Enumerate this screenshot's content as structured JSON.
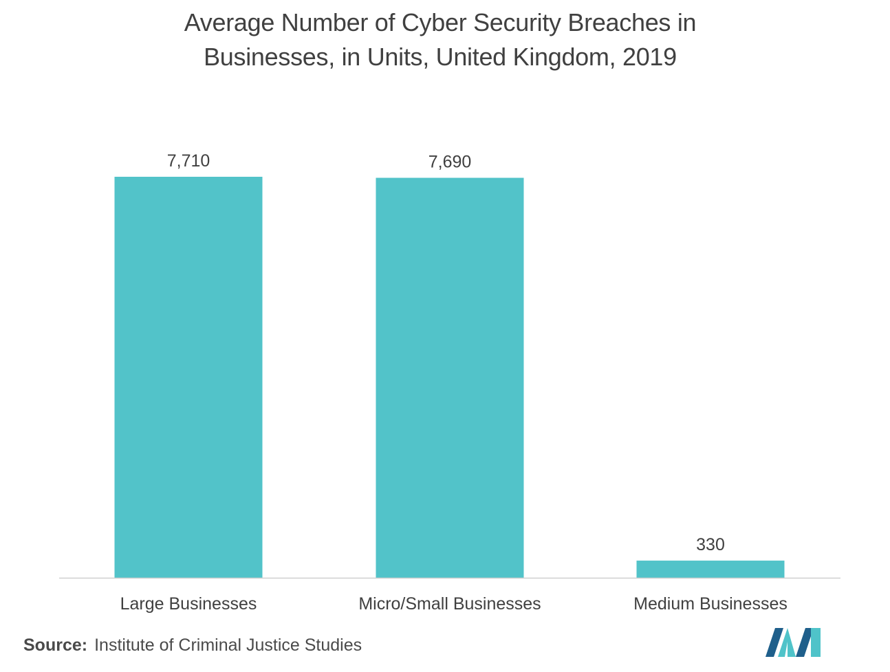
{
  "chart_data": {
    "type": "bar",
    "title": "Average Number of  Cyber Security Breaches in Businesses, in Units, United Kingdom, 2019",
    "title_lines": [
      "Average Number of  Cyber Security Breaches in",
      "Businesses, in Units, United Kingdom, 2019"
    ],
    "categories": [
      "Large Businesses",
      "Micro/Small Businesses",
      "Medium Businesses"
    ],
    "values": [
      7710,
      7690,
      330
    ],
    "value_labels": [
      "7,710",
      "7,690",
      "330"
    ],
    "xlabel": "",
    "ylabel": "",
    "ylim": [
      0,
      7710
    ],
    "grid": false,
    "bar_color": "#52c3c9"
  },
  "source": {
    "label": "Source:",
    "text": "Institute of Criminal Justice Studies"
  },
  "colors": {
    "logo_dark": "#1f5f8b",
    "logo_light": "#4fc3c9"
  }
}
